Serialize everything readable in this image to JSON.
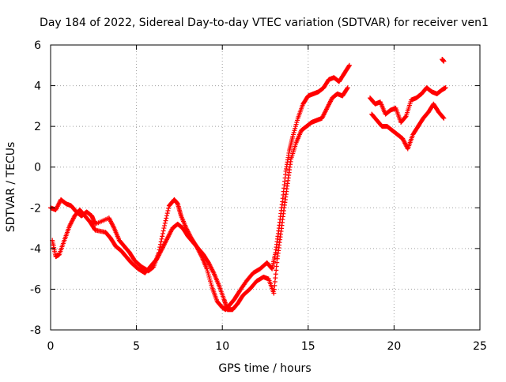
{
  "chart_data": {
    "type": "scatter",
    "title": "Day 184 of 2022, Sidereal Day-to-day VTEC variation (SDTVAR) for receiver ven1",
    "xlabel": "GPS time / hours",
    "ylabel": "SDTVAR / TECUs",
    "xlim": [
      0,
      25
    ],
    "ylim": [
      -8,
      6
    ],
    "x_ticks": [
      0,
      5,
      10,
      15,
      20,
      25
    ],
    "y_ticks": [
      -8,
      -6,
      -4,
      -2,
      0,
      2,
      4,
      6
    ],
    "x_tick_labels": [
      "0",
      "5",
      "10",
      "15",
      "20",
      "25"
    ],
    "y_tick_labels": [
      "-8",
      "-6",
      "-4",
      "-2",
      "0",
      "2",
      "4",
      "6"
    ],
    "grid": true,
    "marker": "plus",
    "color": "#ff0000",
    "series": [
      {
        "x": [
          0.0,
          0.3,
          0.6,
          0.9,
          1.2,
          1.5,
          1.8,
          2.1,
          2.4,
          2.6,
          3.4,
          3.7,
          4.0,
          4.3,
          4.6,
          4.9,
          5.3,
          5.7,
          6.0,
          6.3,
          6.6,
          6.9,
          7.2,
          7.4,
          7.6,
          7.9,
          8.2,
          8.5,
          8.8,
          9.1,
          9.4,
          9.7,
          10.0,
          10.2,
          10.4,
          10.7,
          11.0,
          11.4,
          11.8,
          12.2,
          12.6,
          12.9,
          13.1,
          13.3,
          13.5,
          13.7,
          13.9,
          14.1,
          14.4,
          14.7,
          15.0,
          15.3,
          15.6,
          15.9,
          16.2,
          16.5,
          16.8,
          17.1,
          17.4
        ],
        "y": [
          -2.0,
          -2.1,
          -1.6,
          -1.8,
          -1.9,
          -2.2,
          -2.4,
          -2.2,
          -2.4,
          -2.8,
          -2.5,
          -3.0,
          -3.6,
          -3.9,
          -4.2,
          -4.6,
          -4.9,
          -5.1,
          -4.9,
          -4.2,
          -3.0,
          -1.9,
          -1.6,
          -1.8,
          -2.4,
          -3.0,
          -3.5,
          -3.9,
          -4.4,
          -5.0,
          -5.9,
          -6.6,
          -6.9,
          -7.0,
          -6.8,
          -6.5,
          -6.1,
          -5.6,
          -5.2,
          -5.0,
          -4.7,
          -5.0,
          -4.2,
          -3.0,
          -1.7,
          -0.2,
          0.8,
          1.5,
          2.4,
          3.1,
          3.5,
          3.6,
          3.7,
          3.9,
          4.3,
          4.4,
          4.2,
          4.6,
          5.0
        ]
      },
      {
        "x": [
          0.1,
          0.3,
          0.5,
          0.8,
          1.1,
          1.4,
          1.7,
          2.0,
          2.3,
          2.6,
          3.2,
          3.5,
          3.8,
          4.1,
          4.4,
          4.7,
          5.1,
          5.5,
          5.9,
          6.2,
          6.5,
          6.8,
          7.1,
          7.4,
          7.7,
          8.0,
          8.3,
          8.6,
          8.9,
          9.2,
          9.5,
          9.8,
          10.1,
          10.3,
          10.6,
          10.9,
          11.2,
          11.6,
          12.0,
          12.4,
          12.7,
          13.0,
          13.2,
          13.4,
          13.6,
          13.8,
          14.0,
          14.3,
          14.6,
          14.9,
          15.2,
          15.5,
          15.8,
          16.1,
          16.4,
          16.7,
          17.0,
          17.3
        ],
        "y": [
          -3.6,
          -4.4,
          -4.3,
          -3.6,
          -2.9,
          -2.4,
          -2.1,
          -2.4,
          -2.7,
          -3.1,
          -3.2,
          -3.5,
          -3.9,
          -4.1,
          -4.4,
          -4.7,
          -5.0,
          -5.2,
          -4.8,
          -4.5,
          -4.0,
          -3.5,
          -3.0,
          -2.8,
          -3.0,
          -3.4,
          -3.7,
          -4.0,
          -4.3,
          -4.7,
          -5.2,
          -5.8,
          -6.5,
          -7.0,
          -7.0,
          -6.7,
          -6.3,
          -6.0,
          -5.6,
          -5.4,
          -5.5,
          -6.2,
          -4.5,
          -3.3,
          -2.0,
          -0.8,
          0.4,
          1.2,
          1.8,
          2.0,
          2.2,
          2.3,
          2.4,
          2.9,
          3.4,
          3.6,
          3.5,
          3.9
        ]
      },
      {
        "x": [
          18.6,
          18.9,
          19.2,
          19.5,
          19.8,
          20.1,
          20.4,
          20.7,
          21.0,
          21.3,
          21.6,
          21.9,
          22.2,
          22.5,
          22.8,
          23.0
        ],
        "y": [
          3.4,
          3.1,
          3.2,
          2.6,
          2.8,
          2.9,
          2.2,
          2.5,
          3.3,
          3.4,
          3.6,
          3.9,
          3.7,
          3.6,
          3.8,
          3.9
        ]
      },
      {
        "x": [
          18.7,
          19.0,
          19.3,
          19.6,
          19.9,
          20.2,
          20.5,
          20.8,
          21.1,
          21.4,
          21.7,
          22.0,
          22.3,
          22.6,
          22.9
        ],
        "y": [
          2.6,
          2.3,
          2.0,
          2.0,
          1.8,
          1.6,
          1.4,
          0.9,
          1.6,
          2.0,
          2.4,
          2.7,
          3.1,
          2.7,
          2.4
        ]
      },
      {
        "x": [
          22.8,
          22.9
        ],
        "y": [
          5.3,
          5.2
        ]
      }
    ]
  }
}
